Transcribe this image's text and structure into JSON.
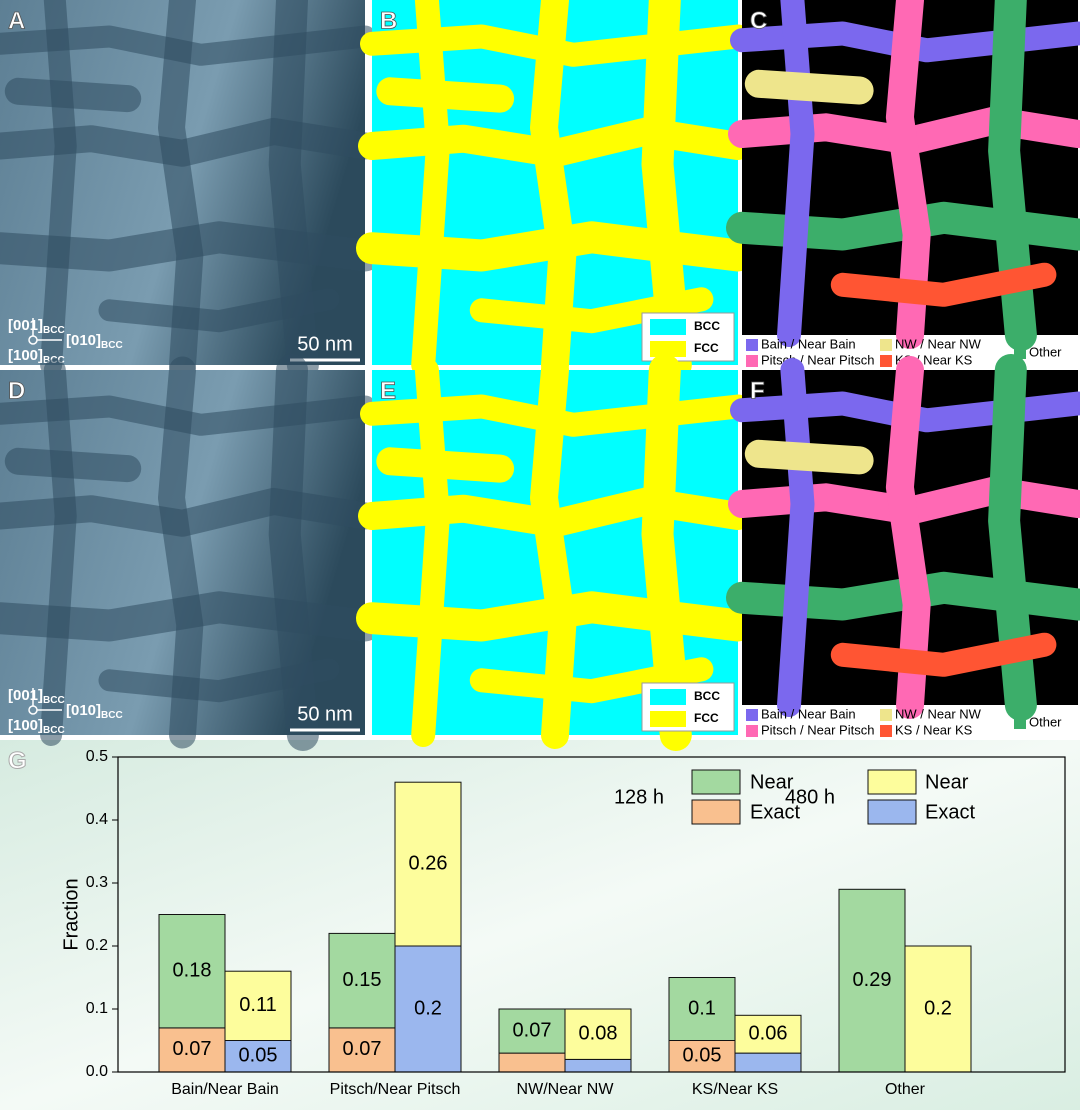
{
  "panels": [
    {
      "label": "A",
      "scale_bar": "50 nm",
      "directions": [
        "[001]",
        "[010]",
        "[100]"
      ],
      "direction_subscript": "BCC"
    },
    {
      "label": "B",
      "legend": [
        {
          "name": "BCC",
          "color": "#00ffff"
        },
        {
          "name": "FCC",
          "color": "#ffff00"
        }
      ]
    },
    {
      "label": "C",
      "legend": [
        {
          "name": "Bain / Near Bain",
          "color": "#7b68ee"
        },
        {
          "name": "Pitsch / Near Pitsch",
          "color": "#ff69b4"
        },
        {
          "name": "NW / Near NW",
          "color": "#eee58c"
        },
        {
          "name": "KS / Near KS",
          "color": "#ff5533"
        },
        {
          "name": "Other",
          "color": "#3cae6a"
        }
      ]
    },
    {
      "label": "D",
      "scale_bar": "50 nm",
      "directions": [
        "[001]",
        "[010]",
        "[100]"
      ],
      "direction_subscript": "BCC"
    },
    {
      "label": "E",
      "legend": [
        {
          "name": "BCC",
          "color": "#00ffff"
        },
        {
          "name": "FCC",
          "color": "#ffff00"
        }
      ]
    },
    {
      "label": "F",
      "legend": [
        {
          "name": "Bain / Near Bain",
          "color": "#7b68ee"
        },
        {
          "name": "Pitsch / Near Pitsch",
          "color": "#ff69b4"
        },
        {
          "name": "NW / Near NW",
          "color": "#eee58c"
        },
        {
          "name": "KS / Near KS",
          "color": "#ff5533"
        },
        {
          "name": "Other",
          "color": "#3cae6a"
        }
      ]
    }
  ],
  "chart_data": {
    "type": "bar",
    "panel_label": "G",
    "ylabel": "Fraction",
    "categories": [
      "Bain/Near Bain",
      "Pitsch/Near Pitsch",
      "NW/Near NW",
      "KS/Near KS",
      "Other"
    ],
    "ylim": [
      0,
      0.5
    ],
    "yticks": [
      {
        "value": 0,
        "label": "0.0"
      },
      0.1,
      0.2,
      0.3,
      0.4,
      0.5
    ],
    "groups": [
      {
        "name": "128 h",
        "series": [
          {
            "name": "Exact",
            "color": "#f9c08f",
            "values": [
              0.07,
              0.07,
              0.03,
              0.05,
              0
            ],
            "value_labels": [
              "0.07",
              "0.07",
              null,
              "0.05",
              null
            ]
          },
          {
            "name": "Near",
            "color": "#a3d9a0",
            "values": [
              0.18,
              0.15,
              0.07,
              0.1,
              0.29
            ],
            "value_labels": [
              "0.18",
              "0.15",
              "0.07",
              "0.1",
              "0.29"
            ]
          }
        ]
      },
      {
        "name": "480 h",
        "series": [
          {
            "name": "Exact",
            "color": "#9bb7ee",
            "values": [
              0.05,
              0.2,
              0.02,
              0.03,
              0
            ],
            "value_labels": [
              "0.05",
              "0.2",
              null,
              null,
              null
            ]
          },
          {
            "name": "Near",
            "color": "#fdfd9c",
            "values": [
              0.11,
              0.26,
              0.08,
              0.06,
              0.2
            ],
            "value_labels": [
              "0.11",
              "0.26",
              "0.08",
              "0.06",
              "0.2"
            ]
          }
        ]
      }
    ]
  }
}
